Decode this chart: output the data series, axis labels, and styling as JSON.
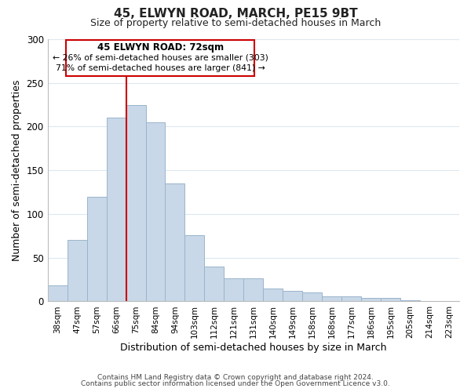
{
  "title": "45, ELWYN ROAD, MARCH, PE15 9BT",
  "subtitle": "Size of property relative to semi-detached houses in March",
  "xlabel": "Distribution of semi-detached houses by size in March",
  "ylabel": "Number of semi-detached properties",
  "footer_line1": "Contains HM Land Registry data © Crown copyright and database right 2024.",
  "footer_line2": "Contains public sector information licensed under the Open Government Licence v3.0.",
  "bar_labels": [
    "38sqm",
    "47sqm",
    "57sqm",
    "66sqm",
    "75sqm",
    "84sqm",
    "94sqm",
    "103sqm",
    "112sqm",
    "121sqm",
    "131sqm",
    "140sqm",
    "149sqm",
    "158sqm",
    "168sqm",
    "177sqm",
    "186sqm",
    "195sqm",
    "205sqm",
    "214sqm",
    "223sqm"
  ],
  "bar_values": [
    18,
    70,
    120,
    210,
    225,
    205,
    135,
    76,
    40,
    26,
    26,
    15,
    12,
    10,
    6,
    6,
    4,
    4,
    1,
    0,
    0
  ],
  "bar_color": "#c8d8e8",
  "bar_edge_color": "#9ab4cc",
  "property_line_index": 4,
  "annotation_title": "45 ELWYN ROAD: 72sqm",
  "annotation_smaller_pct": "26",
  "annotation_smaller_n": "303",
  "annotation_larger_pct": "71",
  "annotation_larger_n": "841",
  "annotation_box_color": "#ffffff",
  "annotation_box_edge_color": "#cc0000",
  "property_line_color": "#cc0000",
  "ylim": [
    0,
    300
  ],
  "yticks": [
    0,
    50,
    100,
    150,
    200,
    250,
    300
  ],
  "background_color": "#ffffff",
  "grid_color": "#dde8f0"
}
